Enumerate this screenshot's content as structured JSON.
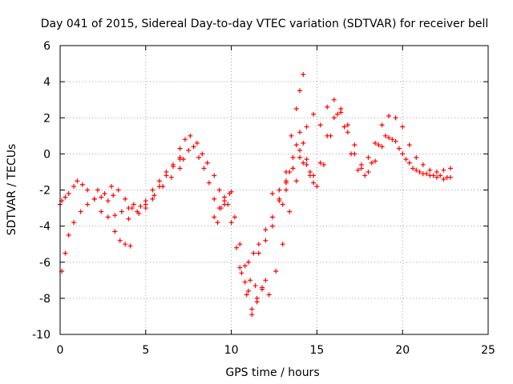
{
  "chart_data": {
    "type": "scatter",
    "title": "Day 041 of 2015, Sidereal Day-to-day VTEC variation (SDTVAR) for receiver bell",
    "xlabel": "GPS time / hours",
    "ylabel": "SDTVAR / TECUs",
    "xlim": [
      0,
      25
    ],
    "ylim": [
      -10,
      6
    ],
    "x_ticks": [
      0,
      5,
      10,
      15,
      20,
      25
    ],
    "y_ticks": [
      -10,
      -8,
      -6,
      -4,
      -2,
      0,
      2,
      4,
      6
    ],
    "x_tick_labels": [
      "0",
      "5",
      "10",
      "15",
      "20",
      "25"
    ],
    "y_tick_labels": [
      "-10",
      "-8",
      "-6",
      "-4",
      "-2",
      "0",
      "2",
      "4",
      "6"
    ],
    "grid": true,
    "marker": "+",
    "color": "#ff0000",
    "series": [
      {
        "name": "trace-a",
        "x": [
          0.0,
          0.1,
          0.3,
          0.5,
          0.8,
          1.0,
          1.3,
          1.6,
          2.0,
          2.4,
          2.8,
          3.2,
          3.6,
          4.0,
          4.3,
          4.7,
          5.0,
          5.4,
          5.8,
          6.2,
          6.6,
          7.0
        ],
        "y": [
          -2.8,
          -2.6,
          -2.4,
          -2.2,
          -1.8,
          -1.5,
          -1.7,
          -2.0,
          -2.5,
          -3.2,
          -3.5,
          -3.4,
          -3.2,
          -3.0,
          -2.8,
          -2.9,
          -2.6,
          -2.0,
          -1.5,
          -1.0,
          -0.6,
          -0.2
        ]
      },
      {
        "name": "trace-b",
        "x": [
          0.1,
          0.3,
          0.5,
          0.8,
          1.2,
          1.6,
          2.0,
          2.4,
          2.8,
          3.1
        ],
        "y": [
          -6.5,
          -5.5,
          -4.5,
          -3.8,
          -3.2,
          -2.8,
          -2.5,
          -2.4,
          -2.6,
          -2.3
        ]
      },
      {
        "name": "trace-c",
        "x": [
          3.2,
          3.5,
          3.8,
          4.1
        ],
        "y": [
          -4.3,
          -4.8,
          -5.0,
          -5.1
        ]
      },
      {
        "name": "trace-d",
        "x": [
          2.2,
          2.6,
          3.0,
          3.4,
          3.8,
          4.2,
          4.6,
          5.0,
          5.4,
          5.8,
          6.2,
          6.6,
          7.0
        ],
        "y": [
          -2.0,
          -2.2,
          -1.8,
          -2.0,
          -2.5,
          -3.0,
          -3.3,
          -3.0,
          -2.5,
          -1.8,
          -1.2,
          -0.7,
          -0.3
        ]
      },
      {
        "name": "trace-e",
        "x": [
          4.0,
          4.5,
          5.0,
          5.5,
          6.0,
          6.5,
          7.0
        ],
        "y": [
          -3.6,
          -3.2,
          -2.8,
          -2.3,
          -1.8,
          -1.3,
          -0.8
        ]
      },
      {
        "name": "trace-f",
        "x": [
          7.0,
          7.3,
          7.6,
          8.0,
          8.3,
          8.6,
          9.0,
          9.3,
          9.6,
          10.0,
          10.3,
          10.6,
          10.9,
          11.2,
          11.5,
          11.8,
          12.0
        ],
        "y": [
          0.3,
          0.8,
          1.0,
          0.6,
          0.0,
          -0.5,
          -1.2,
          -2.0,
          -2.8,
          -3.8,
          -5.2,
          -6.6,
          -7.8,
          -8.6,
          -8.2,
          -7.4,
          -7.0
        ]
      },
      {
        "name": "trace-g",
        "x": [
          7.2,
          7.5,
          7.8,
          8.1,
          8.4,
          8.7,
          9.0,
          9.3,
          9.6,
          9.9,
          10.2,
          10.5,
          10.8,
          11.1,
          11.4
        ],
        "y": [
          -0.3,
          0.2,
          0.4,
          -0.2,
          -0.8,
          -1.6,
          -2.5,
          -3.0,
          -2.6,
          -2.2,
          -3.5,
          -5.0,
          -6.2,
          -7.0,
          -7.3
        ]
      },
      {
        "name": "trace-h",
        "x": [
          9.0,
          9.2,
          9.4,
          9.6,
          9.8,
          10.0
        ],
        "y": [
          -3.5,
          -3.8,
          -3.0,
          -2.4,
          -2.8,
          -2.1
        ]
      },
      {
        "name": "trace-i",
        "x": [
          11.0,
          11.3,
          11.6,
          12.0,
          12.4,
          12.8,
          13.2,
          13.5,
          13.8,
          14.0,
          14.2
        ],
        "y": [
          -6.0,
          -5.5,
          -5.0,
          -4.2,
          -3.5,
          -2.5,
          -1.0,
          1.0,
          2.5,
          3.5,
          4.4
        ]
      },
      {
        "name": "trace-j",
        "x": [
          11.6,
          12.0,
          12.4,
          12.8,
          13.2,
          13.6,
          14.0,
          14.4,
          14.8,
          15.2,
          15.6,
          16.0,
          16.4,
          16.8,
          17.2,
          17.6,
          18.0,
          18.4,
          18.8,
          19.2,
          19.6,
          20.0,
          20.4,
          20.8,
          21.2,
          21.6,
          22.0,
          22.4,
          22.8
        ],
        "y": [
          -5.5,
          -4.8,
          -4.0,
          -2.6,
          -1.6,
          -0.8,
          0.2,
          1.5,
          2.2,
          1.6,
          2.6,
          3.0,
          2.5,
          1.2,
          0.0,
          -0.8,
          -0.2,
          0.6,
          1.6,
          2.1,
          2.0,
          1.5,
          0.5,
          -0.2,
          -0.6,
          -0.9,
          -1.0,
          -0.9,
          -0.8
        ]
      },
      {
        "name": "trace-k",
        "x": [
          12.2,
          12.6,
          13.0,
          13.4,
          13.8,
          14.2,
          14.6,
          15.0,
          15.4,
          15.8,
          16.2,
          16.6,
          17.0,
          17.4,
          17.8,
          18.2,
          18.6,
          19.0,
          19.4,
          19.8,
          20.2,
          20.6,
          21.0,
          21.4,
          21.8,
          22.2,
          22.6
        ],
        "y": [
          -7.8,
          -6.5,
          -5.0,
          -3.2,
          -1.5,
          -0.5,
          -1.2,
          -1.8,
          -0.6,
          1.0,
          2.2,
          1.5,
          0.0,
          -0.9,
          -1.2,
          -0.5,
          0.5,
          1.0,
          0.8,
          0.3,
          -0.3,
          -0.8,
          -1.0,
          -1.1,
          -1.2,
          -1.2,
          -1.3
        ]
      },
      {
        "name": "trace-l",
        "x": [
          12.4,
          12.8,
          13.2,
          13.6,
          14.0,
          14.4,
          14.8,
          15.2,
          15.6,
          16.0,
          16.4,
          16.8,
          17.2,
          17.6,
          18.0,
          18.4,
          18.8,
          19.2,
          19.6,
          20.0,
          20.4,
          20.8,
          21.2,
          21.6,
          22.0,
          22.4,
          22.8
        ],
        "y": [
          -2.2,
          -2.0,
          -1.5,
          -0.8,
          -0.2,
          -0.6,
          -1.2,
          -0.5,
          1.0,
          2.0,
          2.3,
          1.6,
          0.5,
          -0.6,
          -1.0,
          -0.4,
          0.4,
          0.9,
          0.7,
          0.0,
          -0.5,
          -0.9,
          -1.1,
          -1.2,
          -1.3,
          -1.4,
          -1.3
        ]
      },
      {
        "name": "trace-m",
        "x": [
          13.0,
          13.2,
          13.4,
          13.6,
          13.8,
          14.0,
          14.2,
          14.4,
          14.6,
          14.8
        ],
        "y": [
          -2.8,
          -2.0,
          -1.0,
          -0.2,
          0.5,
          1.2,
          0.6,
          -0.3,
          -1.0,
          -1.6
        ]
      },
      {
        "name": "trace-n",
        "x": [
          10.5,
          10.8,
          11.0,
          11.2,
          11.5,
          11.8
        ],
        "y": [
          -6.3,
          -7.1,
          -7.6,
          -8.9,
          -8.0,
          -7.5
        ]
      }
    ]
  }
}
